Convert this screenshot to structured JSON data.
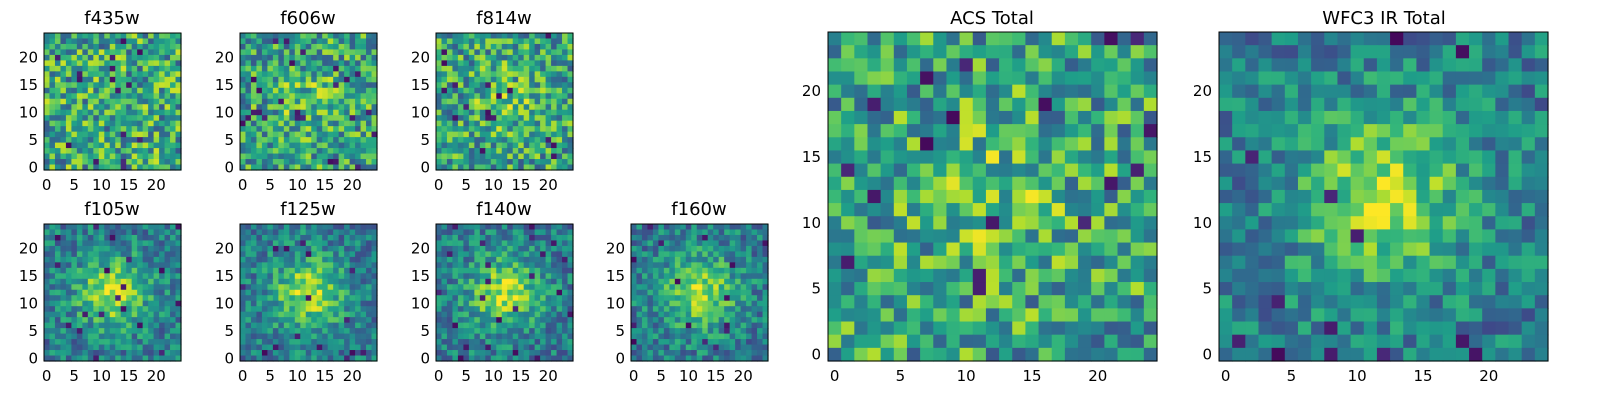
{
  "chart_data": [
    {
      "type": "heatmap",
      "title": "f435w",
      "xticks": [
        "0",
        "5",
        "10",
        "15",
        "20"
      ],
      "yticks": [
        "0",
        "5",
        "10",
        "15",
        "20"
      ],
      "xlim": [
        -0.5,
        24.5
      ],
      "ylim": [
        -0.5,
        24.5
      ],
      "size": 25,
      "colormap": "viridis",
      "structure": "noise",
      "seed": 11
    },
    {
      "type": "heatmap",
      "title": "f606w",
      "xticks": [
        "0",
        "5",
        "10",
        "15",
        "20"
      ],
      "yticks": [
        "0",
        "5",
        "10",
        "15",
        "20"
      ],
      "xlim": [
        -0.5,
        24.5
      ],
      "ylim": [
        -0.5,
        24.5
      ],
      "size": 25,
      "colormap": "viridis",
      "structure": "noise+faint-center",
      "seed": 23
    },
    {
      "type": "heatmap",
      "title": "f814w",
      "xticks": [
        "0",
        "5",
        "10",
        "15",
        "20"
      ],
      "yticks": [
        "0",
        "5",
        "10",
        "15",
        "20"
      ],
      "xlim": [
        -0.5,
        24.5
      ],
      "ylim": [
        -0.5,
        24.5
      ],
      "size": 25,
      "colormap": "viridis",
      "structure": "noise+faint-center",
      "seed": 37
    },
    {
      "type": "heatmap",
      "title": "f105w",
      "xticks": [
        "0",
        "5",
        "10",
        "15",
        "20"
      ],
      "yticks": [
        "0",
        "5",
        "10",
        "15",
        "20"
      ],
      "xlim": [
        -0.5,
        24.5
      ],
      "ylim": [
        -0.5,
        24.5
      ],
      "size": 25,
      "colormap": "viridis",
      "structure": "central-source",
      "seed": 41
    },
    {
      "type": "heatmap",
      "title": "f125w",
      "xticks": [
        "0",
        "5",
        "10",
        "15",
        "20"
      ],
      "yticks": [
        "0",
        "5",
        "10",
        "15",
        "20"
      ],
      "xlim": [
        -0.5,
        24.5
      ],
      "ylim": [
        -0.5,
        24.5
      ],
      "size": 25,
      "colormap": "viridis",
      "structure": "central-source",
      "seed": 53
    },
    {
      "type": "heatmap",
      "title": "f140w",
      "xticks": [
        "0",
        "5",
        "10",
        "15",
        "20"
      ],
      "yticks": [
        "0",
        "5",
        "10",
        "15",
        "20"
      ],
      "xlim": [
        -0.5,
        24.5
      ],
      "ylim": [
        -0.5,
        24.5
      ],
      "size": 25,
      "colormap": "viridis",
      "structure": "central-source",
      "seed": 67
    },
    {
      "type": "heatmap",
      "title": "f160w",
      "xticks": [
        "0",
        "5",
        "10",
        "15",
        "20"
      ],
      "yticks": [
        "0",
        "5",
        "10",
        "15",
        "20"
      ],
      "xlim": [
        -0.5,
        24.5
      ],
      "ylim": [
        -0.5,
        24.5
      ],
      "size": 25,
      "colormap": "viridis",
      "structure": "central-source",
      "seed": 79
    },
    {
      "type": "heatmap",
      "title": "ACS Total",
      "xticks": [
        "0",
        "5",
        "10",
        "15",
        "20"
      ],
      "yticks": [
        "0",
        "5",
        "10",
        "15",
        "20"
      ],
      "xlim": [
        -0.5,
        24.5
      ],
      "ylim": [
        -0.5,
        24.5
      ],
      "size": 25,
      "colormap": "viridis",
      "structure": "noise+faint-center",
      "seed": 83
    },
    {
      "type": "heatmap",
      "title": "WFC3 IR Total",
      "xticks": [
        "0",
        "5",
        "10",
        "15",
        "20"
      ],
      "yticks": [
        "0",
        "5",
        "10",
        "15",
        "20"
      ],
      "xlim": [
        -0.5,
        24.5
      ],
      "ylim": [
        -0.5,
        24.5
      ],
      "size": 25,
      "colormap": "viridis",
      "structure": "central-source",
      "seed": 97
    }
  ]
}
